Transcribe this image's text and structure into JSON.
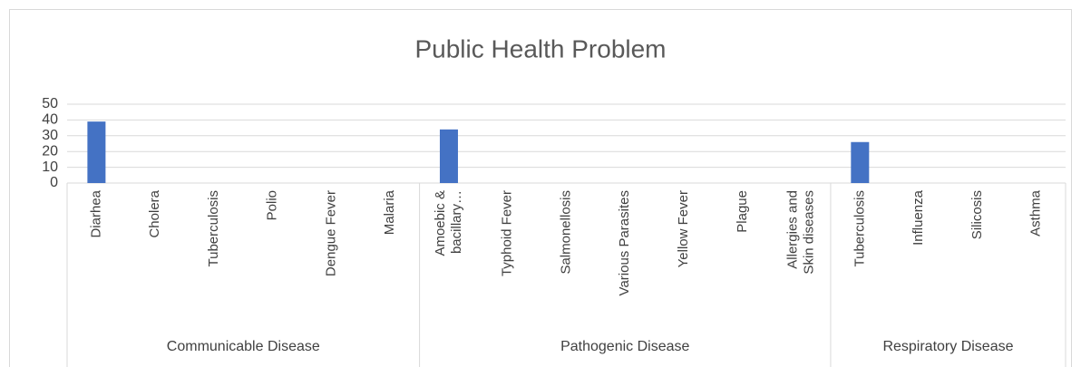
{
  "chart_data": {
    "type": "bar",
    "title": "Public Health Problem",
    "groups": [
      {
        "name": "Communicable Disease",
        "categories": [
          "Diarhea",
          "Cholera",
          "Tuberculosis",
          "Polio",
          "Dengue Fever",
          "Malaria"
        ],
        "values": [
          39,
          0,
          0,
          0,
          0,
          0
        ]
      },
      {
        "name": "Pathogenic Disease",
        "categories": [
          "Amoebic & bacillary…",
          "Typhoid Fever",
          "Salmonellosis",
          "Various Parasites",
          "Yellow Fever",
          "Plague",
          "Allergies and Skin diseases"
        ],
        "values": [
          34,
          0,
          0,
          0,
          0,
          0,
          0
        ]
      },
      {
        "name": "Respiratory Disease",
        "categories": [
          "Tuberculosis",
          "Influenza",
          "Silicosis",
          "Asthma"
        ],
        "values": [
          26,
          0,
          0,
          0
        ]
      }
    ],
    "color": "#4472c4",
    "ylim": [
      0,
      50
    ],
    "yticks": [
      0,
      10,
      20,
      30,
      40,
      50
    ],
    "grid": true
  }
}
